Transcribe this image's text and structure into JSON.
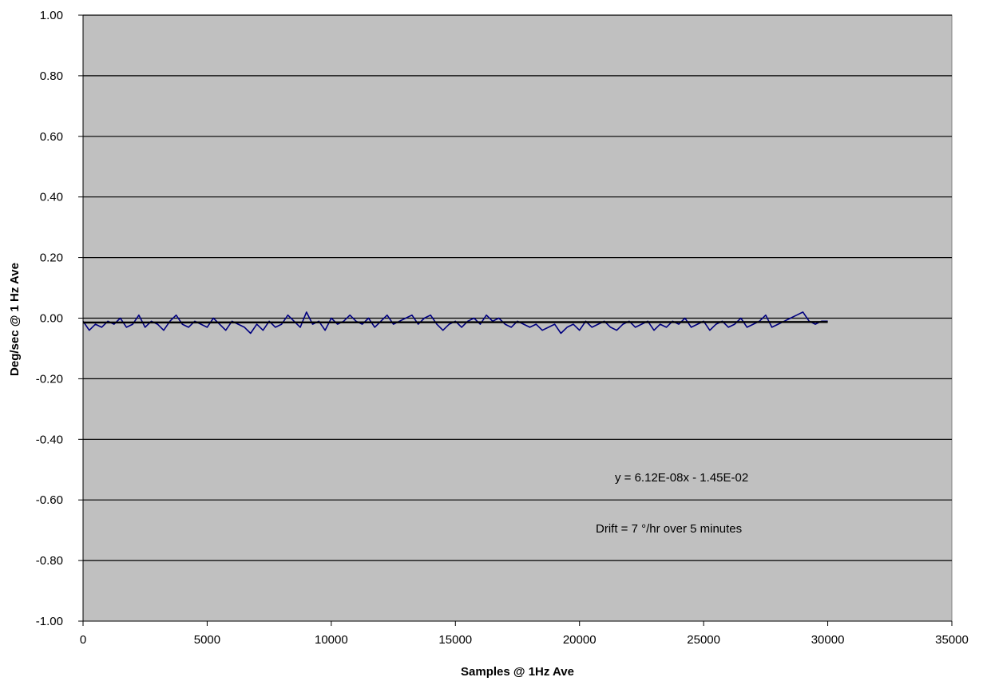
{
  "chart_data": {
    "type": "line",
    "title": "",
    "xlabel": "Samples @ 1Hz Ave",
    "ylabel": "Deg/sec @ 1 Hz Ave",
    "xlim": [
      0,
      35000
    ],
    "ylim": [
      -1.0,
      1.0
    ],
    "x_ticks": [
      "0",
      "5000",
      "10000",
      "15000",
      "20000",
      "25000",
      "30000",
      "35000"
    ],
    "y_ticks": [
      "1.00",
      "0.80",
      "0.60",
      "0.40",
      "0.20",
      "0.00",
      "-0.20",
      "-0.40",
      "-0.60",
      "-0.80",
      "-1.00"
    ],
    "grid": "horizontal",
    "plot_background": "#c0c0c0",
    "series": [
      {
        "color": "#000080",
        "x": [
          0,
          250,
          500,
          750,
          1000,
          1250,
          1500,
          1750,
          2000,
          2250,
          2500,
          2750,
          3000,
          3250,
          3500,
          3750,
          4000,
          4250,
          4500,
          4750,
          5000,
          5250,
          5500,
          5750,
          6000,
          6250,
          6500,
          6750,
          7000,
          7250,
          7500,
          7750,
          8000,
          8250,
          8500,
          8750,
          9000,
          9250,
          9500,
          9750,
          10000,
          10250,
          10500,
          10750,
          11000,
          11250,
          11500,
          11750,
          12000,
          12250,
          12500,
          12750,
          13000,
          13250,
          13500,
          13750,
          14000,
          14250,
          14500,
          14750,
          15000,
          15250,
          15500,
          15750,
          16000,
          16250,
          16500,
          16750,
          17000,
          17250,
          17500,
          17750,
          18000,
          18250,
          18500,
          18750,
          19000,
          19250,
          19500,
          19750,
          20000,
          20250,
          20500,
          20750,
          21000,
          21250,
          21500,
          21750,
          22000,
          22250,
          22500,
          22750,
          23000,
          23250,
          23500,
          23750,
          24000,
          24250,
          24500,
          24750,
          25000,
          25250,
          25500,
          25750,
          26000,
          26250,
          26500,
          26750,
          27000,
          27250,
          27500,
          27750,
          28000,
          28250,
          28500,
          28750,
          29000,
          29250,
          29500,
          29750,
          30000
        ],
        "values": [
          -0.01,
          -0.04,
          -0.02,
          -0.03,
          -0.01,
          -0.02,
          0.0,
          -0.03,
          -0.02,
          0.01,
          -0.03,
          -0.01,
          -0.02,
          -0.04,
          -0.01,
          0.01,
          -0.02,
          -0.03,
          -0.01,
          -0.02,
          -0.03,
          0.0,
          -0.02,
          -0.04,
          -0.01,
          -0.02,
          -0.03,
          -0.05,
          -0.02,
          -0.04,
          -0.01,
          -0.03,
          -0.02,
          0.01,
          -0.01,
          -0.03,
          0.02,
          -0.02,
          -0.01,
          -0.04,
          0.0,
          -0.02,
          -0.01,
          0.01,
          -0.01,
          -0.02,
          0.0,
          -0.03,
          -0.01,
          0.01,
          -0.02,
          -0.01,
          0.0,
          0.01,
          -0.02,
          0.0,
          0.01,
          -0.02,
          -0.04,
          -0.02,
          -0.01,
          -0.03,
          -0.01,
          0.0,
          -0.02,
          0.01,
          -0.01,
          0.0,
          -0.02,
          -0.03,
          -0.01,
          -0.02,
          -0.03,
          -0.02,
          -0.04,
          -0.03,
          -0.02,
          -0.05,
          -0.03,
          -0.02,
          -0.04,
          -0.01,
          -0.03,
          -0.02,
          -0.01,
          -0.03,
          -0.04,
          -0.02,
          -0.01,
          -0.03,
          -0.02,
          -0.01,
          -0.04,
          -0.02,
          -0.03,
          -0.01,
          -0.02,
          0.0,
          -0.03,
          -0.02,
          -0.01,
          -0.04,
          -0.02,
          -0.01,
          -0.03,
          -0.02,
          0.0,
          -0.03,
          -0.02,
          -0.01,
          0.01,
          -0.03,
          -0.02,
          -0.01,
          0.0,
          0.01,
          0.02,
          -0.01,
          -0.02,
          -0.01,
          -0.01
        ]
      },
      {
        "name": "y = 6.12E-08x - 1.45E-02",
        "color": "#000000",
        "x": [
          0,
          30000
        ],
        "values": [
          -0.0145,
          -0.01266
        ]
      }
    ],
    "annotations": [
      "y = 6.12E-08x - 1.45E-02",
      "Drift = 7 °/hr over 5 minutes"
    ]
  }
}
